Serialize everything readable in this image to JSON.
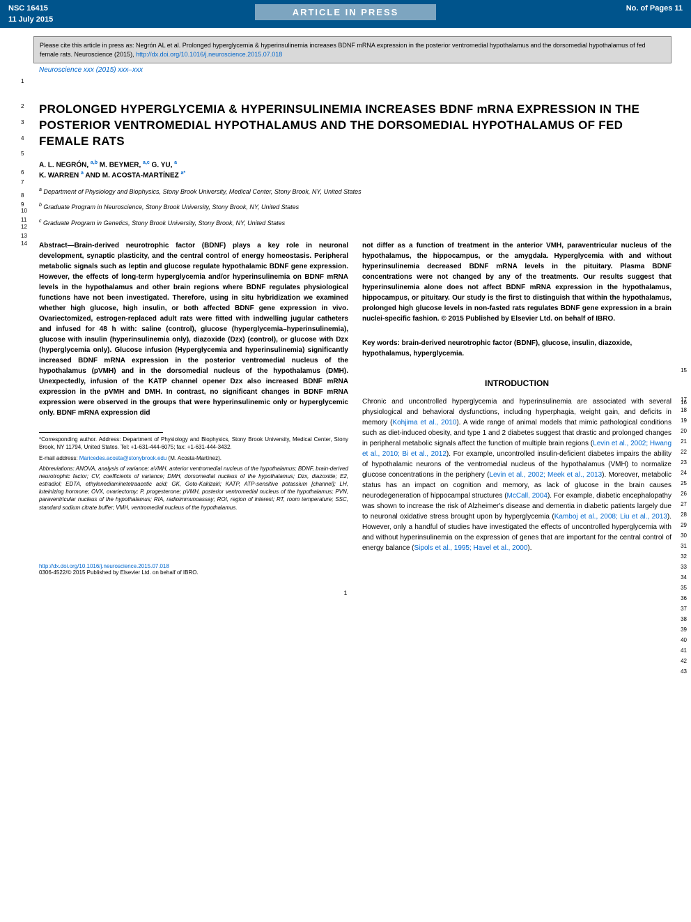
{
  "header": {
    "id": "NSC 16415",
    "date": "11 July 2015",
    "pages": "No. of Pages 11",
    "banner": "ARTICLE IN PRESS"
  },
  "citation": {
    "text": "Please cite this article in press as: Negrón AL et al. Prolonged hyperglycemia & hyperinsulinemia increases BDNF mRNA expression in the posterior ventromedial hypothalamus and the dorsomedial hypothalamus of fed female rats. Neuroscience (2015), ",
    "link": "http://dx.doi.org/10.1016/j.neuroscience.2015.07.018"
  },
  "journal": "Neuroscience xxx (2015) xxx–xxx",
  "title": "PROLONGED HYPERGLYCEMIA & HYPERINSULINEMIA INCREASES BDNF mRNA EXPRESSION IN THE POSTERIOR VENTROMEDIAL HYPOTHALAMUS AND THE DORSOMEDIAL HYPOTHALAMUS OF FED FEMALE RATS",
  "authors": {
    "line1": "A. L. NEGRÓN, ",
    "sup1": "a,b",
    "line2": " M. BEYMER, ",
    "sup2": "a,c",
    "line3": " G. YU, ",
    "sup3": "a",
    "line4": "K. WARREN ",
    "sup4": "a",
    "line5": " AND M. ACOSTA-MARTÍNEZ ",
    "sup5": "a*"
  },
  "affiliations": {
    "a": "Department of Physiology and Biophysics, Stony Brook University, Medical Center, Stony Brook, NY, United States",
    "b": "Graduate Program in Neuroscience, Stony Brook University, Stony Brook, NY, United States",
    "c": "Graduate Program in Genetics, Stony Brook University, Stony Brook, NY, United States"
  },
  "abstract": {
    "left": "Abstract—Brain-derived neurotrophic factor (BDNF) plays a key role in neuronal development, synaptic plasticity, and the central control of energy homeostasis. Peripheral metabolic signals such as leptin and glucose regulate hypothalamic BDNF gene expression. However, the effects of long-term hyperglycemia and/or hyperinsulinemia on BDNF mRNA levels in the hypothalamus and other brain regions where BDNF regulates physiological functions have not been investigated. Therefore, using in situ hybridization we examined whether high glucose, high insulin, or both affected BDNF gene expression in vivo. Ovariectomized, estrogen-replaced adult rats were fitted with indwelling jugular catheters and infused for 48 h with: saline (control), glucose (hyperglycemia–hyperinsulinemia), glucose with insulin (hyperinsulinemia only), diazoxide (Dzx) (control), or glucose with Dzx (hyperglycemia only). Glucose infusion (Hyperglycemia and hyperinsulinemia) significantly increased BDNF mRNA expression in the posterior ventromedial nucleus of the hypothalamus (pVMH) and in the dorsomedial nucleus of the hypothalamus (DMH). Unexpectedly, infusion of the KATP channel opener Dzx also increased BDNF mRNA expression in the pVMH and DMH. In contrast, no significant changes in BDNF mRNA expression were observed in the groups that were hyperinsulinemic only or hyperglycemic only. BDNF mRNA expression did",
    "right": "not differ as a function of treatment in the anterior VMH, paraventricular nucleus of the hypothalamus, the hippocampus, or the amygdala. Hyperglycemia with and without hyperinsulinemia decreased BDNF mRNA levels in the pituitary. Plasma BDNF concentrations were not changed by any of the treatments. Our results suggest that hyperinsulinemia alone does not affect BDNF mRNA expression in the hypothalamus, hippocampus, or pituitary. Our study is the first to distinguish that within the hypothalamus, prolonged high glucose levels in non-fasted rats regulates BDNF gene expression in a brain nuclei-specific fashion. © 2015 Published by Elsevier Ltd. on behalf of IBRO."
  },
  "keywords": "Key words: brain-derived neurotrophic factor (BDNF), glucose, insulin, diazoxide, hypothalamus, hyperglycemia.",
  "intro_heading": "INTRODUCTION",
  "intro_body": "Chronic and uncontrolled hyperglycemia and hyperinsulinemia are associated with several physiological and behavioral dysfunctions, including hyperphagia, weight gain, and deficits in memory (Kohjima et al., 2010). A wide range of animal models that mimic pathological conditions such as diet-induced obesity, and type 1 and 2 diabetes suggest that drastic and prolonged changes in peripheral metabolic signals affect the function of multiple brain regions (Levin et al., 2002; Hwang et al., 2010; Bi et al., 2012). For example, uncontrolled insulin-deficient diabetes impairs the ability of hypothalamic neurons of the ventromedial nucleus of the hypothalamus (VMH) to normalize glucose concentrations in the periphery (Levin et al., 2002; Meek et al., 2013). Moreover, metabolic status has an impact on cognition and memory, as lack of glucose in the brain causes neurodegeneration of hippocampal structures (McCall, 2004). For example, diabetic encephalopathy was shown to increase the risk of Alzheimer's disease and dementia in diabetic patients largely due to neuronal oxidative stress brought upon by hyperglycemia (Kamboj et al., 2008; Liu et al., 2013). However, only a handful of studies have investigated the effects of uncontrolled hyperglycemia with and without hyperinsulinemia on the expression of genes that are important for the central control of energy balance (Sipols et al., 1995; Havel et al., 2000).",
  "footnotes": {
    "corr": "*Corresponding author. Address: Department of Physiology and Biophysics, Stony Brook University, Medical Center, Stony Brook, NY 11794, United States. Tel: +1-631-444-6075; fax: +1-631-444-3432.",
    "email_label": "E-mail address: ",
    "email": "Maricedes.acosta@stonybrook.edu",
    "email_name": " (M. Acosta-Martínez).",
    "abbrev": "Abbreviations: ANOVA, analysis of variance; aVMH, anterior ventromedial nucleus of the hypothalamus; BDNF, brain-derived neurotrophic factor; CV, coefficients of variance; DMH, dorsomedial nucleus of the hypothalamus; Dzx, diazoxide; E2, estradiol; EDTA, ethylenediaminetetraacetic acid; GK, Goto-Kakizaki; KATP, ATP-sensitive potassium [channel]; LH, luteinizing hormone; OVX, ovariectomy; P, progesterone; pVMH, posterior ventromedial nucleus of the hypothalamus; PVN, paraventricular nucleus of the hypothalamus; RIA, radioimmunoassay; ROI, region of interest; RT, room temperature; SSC, standard sodium citrate buffer; VMH, ventromedial nucleus of the hypothalamus."
  },
  "doi": {
    "link": "http://dx.doi.org/10.1016/j.neuroscience.2015.07.018",
    "copyright": "0306-4522/© 2015 Published by Elsevier Ltd. on behalf of IBRO."
  },
  "page_number": "1",
  "line_numbers": {
    "ln1": "1",
    "ln2": "2",
    "ln3": "3",
    "ln4": "4",
    "ln5": "5",
    "ln6": "6",
    "ln7": "7",
    "ln8": "8",
    "ln9": "9",
    "ln10": "10",
    "ln11": "11",
    "ln12": "12",
    "ln13": "13",
    "ln14": "14",
    "ln15": "15",
    "ln16": "16",
    "ln17": "17",
    "ln18": "18",
    "ln19": "19",
    "ln20": "20",
    "ln21": "21",
    "ln22": "22",
    "ln23": "23",
    "ln24": "24",
    "ln25": "25",
    "ln26": "26",
    "ln27": "27",
    "ln28": "28",
    "ln29": "29",
    "ln30": "30",
    "ln31": "31",
    "ln32": "32",
    "ln33": "33",
    "ln34": "34",
    "ln35": "35",
    "ln36": "36",
    "ln37": "37",
    "ln38": "38",
    "ln39": "39",
    "ln40": "40",
    "ln41": "41",
    "ln42": "42",
    "ln43": "43"
  },
  "colors": {
    "header_bg": "#00548c",
    "banner_bg": "#7da5c0",
    "citation_bg": "#d9d9d9",
    "link": "#0066cc",
    "text": "#000000",
    "watermark": "#e8e8e8"
  }
}
